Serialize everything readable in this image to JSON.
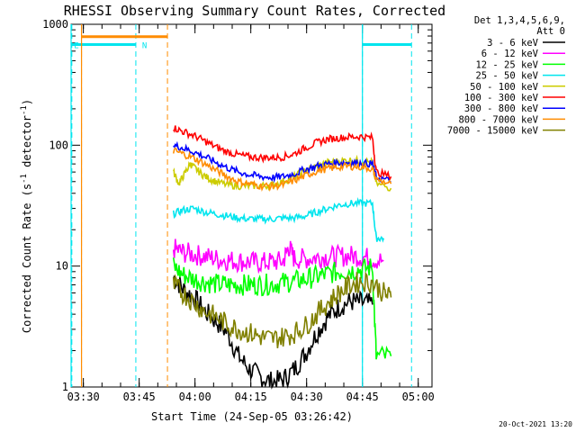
{
  "chart_data": {
    "type": "line",
    "title": "RHESSI Observing Summary Count Rates, Corrected",
    "xlabel": "Start Time (24-Sep-05 03:26:42)",
    "ylabel": "Corrected Count Rate (s⁻¹ detector⁻¹)",
    "ylabel_main": "Corrected Count Rate (s",
    "ylabel_sup1": "-1",
    "ylabel_mid": " detector",
    "ylabel_sup2": "-1",
    "ylabel_end": ")",
    "yscale": "log",
    "xlim_minutes": [
      0,
      97
    ],
    "ylim": [
      1,
      1000
    ],
    "x_ticks": [
      {
        "label": "03:30",
        "min": 3.3
      },
      {
        "label": "03:45",
        "min": 18.3
      },
      {
        "label": "04:00",
        "min": 33.3
      },
      {
        "label": "04:15",
        "min": 48.3
      },
      {
        "label": "04:30",
        "min": 63.3
      },
      {
        "label": "04:45",
        "min": 78.3
      },
      {
        "label": "05:00",
        "min": 93.3
      }
    ],
    "y_ticks": [
      {
        "label": "1",
        "value": 1
      },
      {
        "label": "10",
        "value": 10
      },
      {
        "label": "100",
        "value": 100
      },
      {
        "label": "1000",
        "value": 1000
      }
    ],
    "legend_header": [
      "Det 1,3,4,5,6,9,",
      "Att 0"
    ],
    "legend_placement": "right",
    "flags": [
      {
        "type": "eclipse",
        "color": "#00e5ee",
        "style": "solid",
        "segments": [
          [
            0,
            17.4
          ],
          [
            78.3,
            91.5
          ]
        ],
        "level": 680
      },
      {
        "type": "saa",
        "color": "#00e5ee",
        "style": "dashed",
        "lines": [
          0.2,
          17.4,
          78.3,
          91.5
        ]
      },
      {
        "type": "attenuator",
        "color": "#ff8c00",
        "style": "solid",
        "segments": [
          [
            2.8,
            25.9
          ]
        ],
        "level": 790
      },
      {
        "type": "attenuator_edges",
        "color": "#ff8c00",
        "style": "dashed",
        "lines": [
          2.8,
          25.9
        ]
      }
    ],
    "flag_labels": [
      {
        "text": "E",
        "min": 0.3
      },
      {
        "text": "N",
        "min": 18.6
      }
    ],
    "series": [
      {
        "name": "3 - 6 keV",
        "color": "#000000",
        "data": [
          [
            27.5,
            8.2
          ],
          [
            30,
            6.5
          ],
          [
            33,
            5.5
          ],
          [
            36,
            4.2
          ],
          [
            39,
            3.5
          ],
          [
            42,
            2.8
          ],
          [
            45,
            1.8
          ],
          [
            48,
            1.4
          ],
          [
            51,
            1.2
          ],
          [
            54,
            1.1
          ],
          [
            57,
            1.15
          ],
          [
            60,
            1.4
          ],
          [
            63,
            1.9
          ],
          [
            66,
            2.8
          ],
          [
            69,
            3.8
          ],
          [
            72,
            4.6
          ],
          [
            75,
            5.1
          ],
          [
            78,
            5.0
          ],
          [
            81,
            4.8
          ]
        ]
      },
      {
        "name": "6 - 12 keV",
        "color": "#ff00ff",
        "data": [
          [
            27.5,
            14
          ],
          [
            30,
            13
          ],
          [
            33,
            12.5
          ],
          [
            36,
            12
          ],
          [
            39,
            11.5
          ],
          [
            42,
            11.2
          ],
          [
            45,
            11
          ],
          [
            48,
            10.8
          ],
          [
            51,
            10.7
          ],
          [
            54,
            10.8
          ],
          [
            57,
            11
          ],
          [
            58.5,
            14.5
          ],
          [
            60,
            11.5
          ],
          [
            63,
            11.5
          ],
          [
            66,
            11.8
          ],
          [
            69,
            12
          ],
          [
            72,
            12
          ],
          [
            75,
            12.2
          ],
          [
            78,
            12
          ],
          [
            81,
            11.5
          ],
          [
            84,
            11
          ]
        ]
      },
      {
        "name": "12 - 25 keV",
        "color": "#00ff00",
        "data": [
          [
            27.5,
            10
          ],
          [
            30,
            8.5
          ],
          [
            33,
            7.8
          ],
          [
            36,
            7.4
          ],
          [
            39,
            7.1
          ],
          [
            42,
            7
          ],
          [
            45,
            7
          ],
          [
            48,
            7
          ],
          [
            51,
            7
          ],
          [
            54,
            7.1
          ],
          [
            57,
            7.3
          ],
          [
            60,
            7.5
          ],
          [
            63,
            7.8
          ],
          [
            66,
            8.2
          ],
          [
            69,
            8.6
          ],
          [
            72,
            9
          ],
          [
            75,
            9.2
          ],
          [
            78,
            9.4
          ],
          [
            81,
            9.8
          ],
          [
            82,
            1.8
          ],
          [
            86,
            1.8
          ]
        ]
      },
      {
        "name": "25 - 50 keV",
        "color": "#00e5ee",
        "data": [
          [
            27.5,
            27
          ],
          [
            30,
            29
          ],
          [
            33,
            30
          ],
          [
            36,
            28
          ],
          [
            39,
            27
          ],
          [
            42,
            26
          ],
          [
            45,
            25
          ],
          [
            48,
            24.5
          ],
          [
            51,
            24.5
          ],
          [
            54,
            24.5
          ],
          [
            57,
            25
          ],
          [
            60,
            25
          ],
          [
            63,
            26
          ],
          [
            66,
            28
          ],
          [
            69,
            30
          ],
          [
            72,
            32
          ],
          [
            75,
            33
          ],
          [
            78,
            33
          ],
          [
            81,
            33
          ],
          [
            82,
            17
          ],
          [
            84,
            17
          ]
        ]
      },
      {
        "name": "50 - 100 keV",
        "color": "#cccc00",
        "data": [
          [
            27.5,
            60
          ],
          [
            29,
            48
          ],
          [
            30.5,
            58
          ],
          [
            32,
            70
          ],
          [
            33,
            66
          ],
          [
            35,
            58
          ],
          [
            37,
            53
          ],
          [
            39,
            50
          ],
          [
            42,
            47
          ],
          [
            45,
            46
          ],
          [
            48,
            46
          ],
          [
            51,
            46
          ],
          [
            54,
            47
          ],
          [
            57,
            50
          ],
          [
            60,
            55
          ],
          [
            63,
            62
          ],
          [
            66,
            67
          ],
          [
            69,
            72
          ],
          [
            72,
            74
          ],
          [
            75,
            75
          ],
          [
            78,
            74
          ],
          [
            81,
            72
          ],
          [
            82,
            48
          ],
          [
            86,
            44
          ]
        ]
      },
      {
        "name": "100 - 300 keV",
        "color": "#ff0000",
        "data": [
          [
            27.5,
            140
          ],
          [
            30,
            130
          ],
          [
            33,
            120
          ],
          [
            36,
            108
          ],
          [
            39,
            96
          ],
          [
            42,
            88
          ],
          [
            45,
            83
          ],
          [
            48,
            80
          ],
          [
            51,
            79
          ],
          [
            54,
            79
          ],
          [
            57,
            80
          ],
          [
            60,
            85
          ],
          [
            63,
            95
          ],
          [
            66,
            105
          ],
          [
            69,
            112
          ],
          [
            72,
            115
          ],
          [
            75,
            117
          ],
          [
            78,
            118
          ],
          [
            81,
            115
          ],
          [
            82,
            60
          ],
          [
            86,
            55
          ]
        ]
      },
      {
        "name": "300 - 800 keV",
        "color": "#0000ff",
        "data": [
          [
            27.5,
            100
          ],
          [
            30,
            95
          ],
          [
            33,
            88
          ],
          [
            36,
            80
          ],
          [
            39,
            72
          ],
          [
            42,
            65
          ],
          [
            45,
            60
          ],
          [
            48,
            57
          ],
          [
            51,
            55
          ],
          [
            54,
            54
          ],
          [
            57,
            55
          ],
          [
            60,
            58
          ],
          [
            63,
            63
          ],
          [
            66,
            67
          ],
          [
            69,
            70
          ],
          [
            72,
            72
          ],
          [
            75,
            72
          ],
          [
            78,
            71
          ],
          [
            81,
            70
          ],
          [
            82,
            55
          ],
          [
            86,
            50
          ]
        ]
      },
      {
        "name": "800 - 7000 keV",
        "color": "#ff8c00",
        "data": [
          [
            27.5,
            90
          ],
          [
            30,
            85
          ],
          [
            33,
            78
          ],
          [
            36,
            70
          ],
          [
            39,
            62
          ],
          [
            42,
            55
          ],
          [
            45,
            50
          ],
          [
            48,
            48
          ],
          [
            51,
            46
          ],
          [
            54,
            46
          ],
          [
            57,
            47
          ],
          [
            60,
            51
          ],
          [
            63,
            56
          ],
          [
            66,
            61
          ],
          [
            69,
            64
          ],
          [
            72,
            66
          ],
          [
            75,
            67
          ],
          [
            78,
            66
          ],
          [
            81,
            64
          ],
          [
            82,
            52
          ],
          [
            86,
            48
          ]
        ]
      },
      {
        "name": "7000 - 15000 keV",
        "color": "#808000",
        "data": [
          [
            27.5,
            7
          ],
          [
            30,
            6
          ],
          [
            33,
            5
          ],
          [
            36,
            4.2
          ],
          [
            39,
            3.8
          ],
          [
            42,
            3.3
          ],
          [
            45,
            3
          ],
          [
            48,
            2.8
          ],
          [
            51,
            2.6
          ],
          [
            54,
            2.5
          ],
          [
            57,
            2.6
          ],
          [
            60,
            2.8
          ],
          [
            63,
            3.2
          ],
          [
            66,
            4
          ],
          [
            69,
            5
          ],
          [
            72,
            6
          ],
          [
            75,
            7
          ],
          [
            78,
            7.5
          ],
          [
            81,
            7.3
          ],
          [
            84,
            6
          ],
          [
            86,
            5.5
          ]
        ]
      }
    ]
  },
  "footer": {
    "stamp": "20-Oct-2021 13:20"
  }
}
